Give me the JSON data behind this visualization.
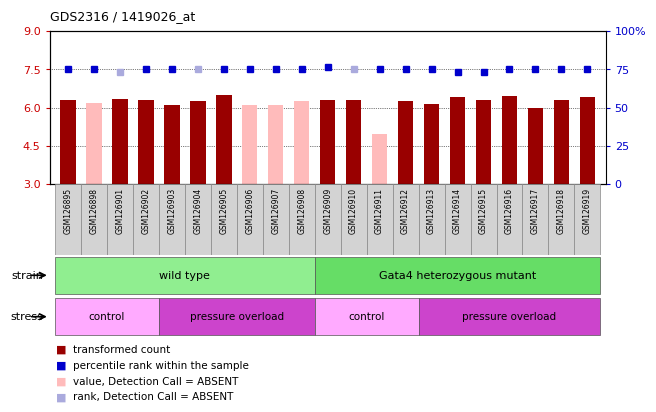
{
  "title": "GDS2316 / 1419026_at",
  "samples": [
    "GSM126895",
    "GSM126898",
    "GSM126901",
    "GSM126902",
    "GSM126903",
    "GSM126904",
    "GSM126905",
    "GSM126906",
    "GSM126907",
    "GSM126908",
    "GSM126909",
    "GSM126910",
    "GSM126911",
    "GSM126912",
    "GSM126913",
    "GSM126914",
    "GSM126915",
    "GSM126916",
    "GSM126917",
    "GSM126918",
    "GSM126919"
  ],
  "bar_values": [
    6.3,
    6.2,
    6.35,
    6.3,
    6.1,
    6.25,
    6.5,
    6.1,
    6.1,
    6.25,
    6.3,
    6.3,
    4.95,
    6.25,
    6.15,
    6.4,
    6.3,
    6.45,
    6.0,
    6.3,
    6.4
  ],
  "bar_absent": [
    false,
    true,
    false,
    false,
    false,
    false,
    false,
    true,
    true,
    true,
    false,
    false,
    true,
    false,
    false,
    false,
    false,
    false,
    false,
    false,
    false
  ],
  "rank_values": [
    7.5,
    7.5,
    7.4,
    7.5,
    7.5,
    7.5,
    7.5,
    7.5,
    7.5,
    7.5,
    7.6,
    7.5,
    7.5,
    7.5,
    7.5,
    7.4,
    7.4,
    7.5,
    7.5,
    7.5,
    7.5
  ],
  "rank_absent": [
    false,
    false,
    true,
    false,
    false,
    true,
    false,
    false,
    false,
    false,
    false,
    true,
    false,
    false,
    false,
    false,
    false,
    false,
    false,
    false,
    false
  ],
  "ylim_left": [
    3,
    9
  ],
  "yticks_left": [
    3,
    4.5,
    6,
    7.5,
    9
  ],
  "yticks_right_labels": [
    "0",
    "25",
    "50",
    "75",
    "100%"
  ],
  "bar_color_present": "#990000",
  "bar_color_absent": "#ffbbbb",
  "rank_color_present": "#0000cc",
  "rank_color_absent": "#aaaadd",
  "strain_wt_color": "#90ee90",
  "strain_mut_color": "#66dd66",
  "stress_control_color": "#ffaaff",
  "stress_overload_color": "#cc44cc",
  "legend_items": [
    {
      "label": "transformed count",
      "color": "#990000"
    },
    {
      "label": "percentile rank within the sample",
      "color": "#0000cc"
    },
    {
      "label": "value, Detection Call = ABSENT",
      "color": "#ffbbbb"
    },
    {
      "label": "rank, Detection Call = ABSENT",
      "color": "#aaaadd"
    }
  ]
}
